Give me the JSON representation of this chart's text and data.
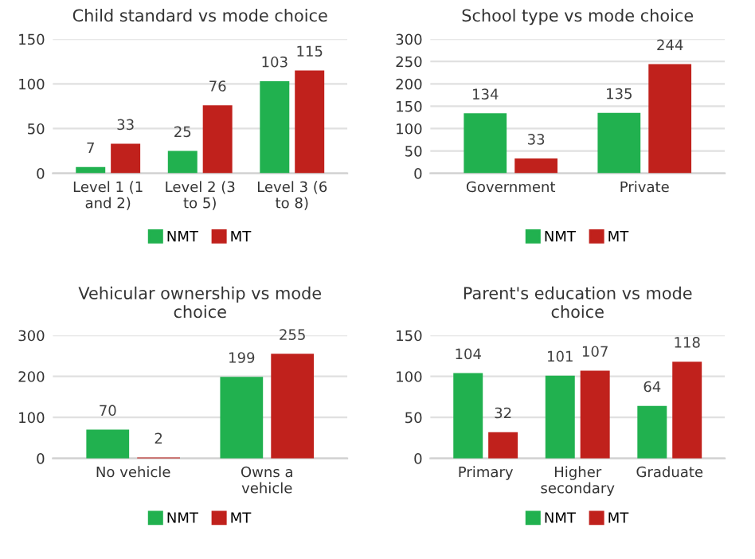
{
  "chart_data": [
    {
      "type": "bar",
      "title": "Child standard vs mode choice",
      "categories": [
        "Level 1 (1 and 2)",
        "Level 2 (3 to 5)",
        "Level 3 (6 to 8)"
      ],
      "series": [
        {
          "name": "NMT",
          "color": "#21b14f",
          "values": [
            7,
            25,
            103
          ]
        },
        {
          "name": "MT",
          "color": "#c0211c",
          "values": [
            33,
            76,
            115
          ]
        }
      ],
      "ylim": [
        0,
        150
      ],
      "yticks": [
        0,
        50,
        100,
        150
      ],
      "grid": "y",
      "legend": "bottom",
      "data_labels": true
    },
    {
      "type": "bar",
      "title": "School type vs mode choice",
      "categories": [
        "Government",
        "Private"
      ],
      "series": [
        {
          "name": "NMT",
          "color": "#21b14f",
          "values": [
            134,
            135
          ]
        },
        {
          "name": "MT",
          "color": "#c0211c",
          "values": [
            33,
            244
          ]
        }
      ],
      "ylim": [
        0,
        300
      ],
      "yticks": [
        0,
        50,
        100,
        150,
        200,
        250,
        300
      ],
      "grid": "y",
      "legend": "bottom",
      "data_labels": true
    },
    {
      "type": "bar",
      "title": "Vehicular ownership vs mode choice",
      "categories": [
        "No vehicle",
        "Owns a vehicle"
      ],
      "series": [
        {
          "name": "NMT",
          "color": "#21b14f",
          "values": [
            70,
            199
          ]
        },
        {
          "name": "MT",
          "color": "#c0211c",
          "values": [
            2,
            255
          ]
        }
      ],
      "ylim": [
        0,
        300
      ],
      "yticks": [
        0,
        100,
        200,
        300
      ],
      "grid": "y",
      "legend": "bottom",
      "data_labels": true
    },
    {
      "type": "bar",
      "title": "Parent's education vs mode choice",
      "categories": [
        "Primary",
        "Higher secondary",
        "Graduate"
      ],
      "series": [
        {
          "name": "NMT",
          "color": "#21b14f",
          "values": [
            104,
            101,
            64
          ]
        },
        {
          "name": "MT",
          "color": "#c0211c",
          "values": [
            32,
            107,
            118
          ]
        }
      ],
      "ylim": [
        0,
        150
      ],
      "yticks": [
        0,
        50,
        100,
        150
      ],
      "grid": "y",
      "legend": "bottom",
      "data_labels": true
    }
  ]
}
